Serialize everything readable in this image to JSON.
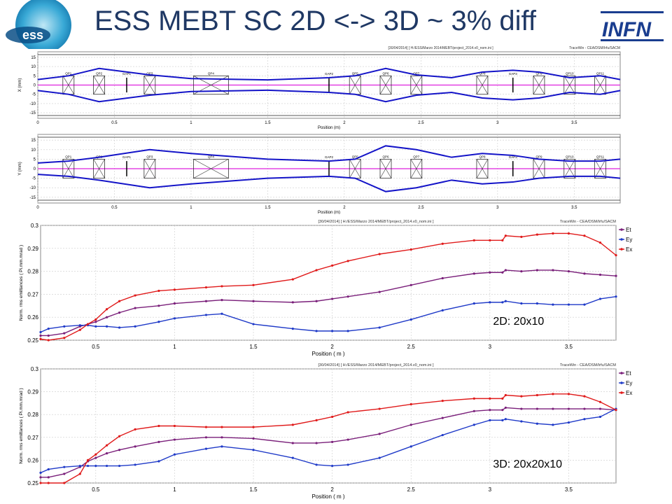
{
  "slide": {
    "title": "ESS MEBT SC 2D <-> 3D ~ 3% diff",
    "logo_right_text": "INFN"
  },
  "colors": {
    "title": "#1f3864",
    "envelope": "#1414c8",
    "axis_line": "#dd22dd",
    "Et": "#7a1f7a",
    "Ey": "#1f3ac8",
    "Ex": "#e01b1b"
  },
  "chart_data": [
    {
      "type": "line",
      "panel": "x-envelope",
      "header": "[30/04/2014] [ H:/ESS/Marzo 2014/MEBT/project_2014.v0_nom.ini ]",
      "software": "TraceWin - CEA/DSM/Irfu/SACM",
      "xlabel": "Position (m)",
      "ylabel": "X (mm)",
      "xlim": [
        0,
        3.8
      ],
      "ylim": [
        -18,
        18
      ],
      "xticks": [
        0,
        0.5,
        1,
        1.5,
        2,
        2.5,
        3,
        3.5
      ],
      "yticks": [
        15,
        10,
        5,
        0,
        -5,
        -10,
        -15
      ],
      "grid": true,
      "elements": [
        {
          "name": "QP1",
          "x": 0.2,
          "kind": "quad"
        },
        {
          "name": "QP2",
          "x": 0.4,
          "kind": "quad"
        },
        {
          "name": "GAP1",
          "x": 0.58,
          "kind": "gap"
        },
        {
          "name": "QP3",
          "x": 0.73,
          "kind": "quad"
        },
        {
          "name": "QP4",
          "x": 1.13,
          "kind": "bigquad"
        },
        {
          "name": "GAP2",
          "x": 1.9,
          "kind": "gap"
        },
        {
          "name": "QP5",
          "x": 2.07,
          "kind": "quad"
        },
        {
          "name": "QP6",
          "x": 2.27,
          "kind": "quad"
        },
        {
          "name": "QP7",
          "x": 2.47,
          "kind": "quad"
        },
        {
          "name": "QP8",
          "x": 2.9,
          "kind": "quad"
        },
        {
          "name": "GAP3",
          "x": 3.1,
          "kind": "gap"
        },
        {
          "name": "QP9",
          "x": 3.27,
          "kind": "quad"
        },
        {
          "name": "QP10",
          "x": 3.47,
          "kind": "quad"
        },
        {
          "name": "QP11",
          "x": 3.67,
          "kind": "quad"
        }
      ],
      "x": [
        0,
        0.2,
        0.4,
        0.73,
        1.0,
        1.5,
        1.9,
        2.07,
        2.27,
        2.47,
        2.7,
        2.9,
        3.1,
        3.27,
        3.47,
        3.67,
        3.8
      ],
      "upper": [
        3,
        5,
        9,
        5.5,
        3.5,
        2.8,
        4,
        5,
        9,
        5.5,
        4,
        7,
        8,
        7,
        4,
        5,
        3
      ],
      "lower": [
        -3,
        -5,
        -9,
        -5.5,
        -3.5,
        -2.8,
        -4,
        -5,
        -9,
        -5.5,
        -4,
        -7,
        -8,
        -7,
        -4,
        -5,
        -3
      ]
    },
    {
      "type": "line",
      "panel": "y-envelope",
      "xlabel": "Position (m)",
      "ylabel": "Y (mm)",
      "xlim": [
        0,
        3.8
      ],
      "ylim": [
        -18,
        18
      ],
      "xticks": [
        0,
        0.5,
        1,
        1.5,
        2,
        2.5,
        3,
        3.5
      ],
      "yticks": [
        15,
        10,
        5,
        0,
        -5,
        -10,
        -15
      ],
      "grid": true,
      "elements": [
        {
          "name": "QP1",
          "x": 0.2,
          "kind": "quad"
        },
        {
          "name": "QP2",
          "x": 0.4,
          "kind": "quad"
        },
        {
          "name": "GAP1",
          "x": 0.58,
          "kind": "gap"
        },
        {
          "name": "QP3",
          "x": 0.73,
          "kind": "quad"
        },
        {
          "name": "QP4",
          "x": 1.13,
          "kind": "bigquad"
        },
        {
          "name": "GAP2",
          "x": 1.9,
          "kind": "gap"
        },
        {
          "name": "QP5",
          "x": 2.07,
          "kind": "quad"
        },
        {
          "name": "QP6",
          "x": 2.27,
          "kind": "quad"
        },
        {
          "name": "QP7",
          "x": 2.47,
          "kind": "quad"
        },
        {
          "name": "QP8",
          "x": 2.9,
          "kind": "quad"
        },
        {
          "name": "GAP3",
          "x": 3.1,
          "kind": "gap"
        },
        {
          "name": "QP9",
          "x": 3.27,
          "kind": "quad"
        },
        {
          "name": "QP10",
          "x": 3.47,
          "kind": "quad"
        },
        {
          "name": "QP11",
          "x": 3.67,
          "kind": "quad"
        }
      ],
      "x": [
        0,
        0.2,
        0.4,
        0.73,
        1.0,
        1.5,
        1.9,
        2.07,
        2.27,
        2.47,
        2.7,
        2.9,
        3.1,
        3.27,
        3.47,
        3.67,
        3.8
      ],
      "upper": [
        3,
        4,
        6,
        10,
        8,
        5,
        4,
        5,
        12,
        10,
        6,
        8,
        7,
        5,
        4,
        4,
        5
      ],
      "lower": [
        -3,
        -4,
        -6,
        -10,
        -8,
        -5,
        -4,
        -5,
        -12,
        -10,
        -6,
        -8,
        -7,
        -5,
        -4,
        -4,
        -5
      ]
    },
    {
      "type": "line",
      "panel": "emittance-2D",
      "header": "[30/04/2014] [ H:/ESS/Marzo 2014/MEBT/project_2014.v0_nom.ini ]",
      "software": "TraceWin - CEA/DSM/Irfu/SACM",
      "xlabel": "Position ( m )",
      "ylabel": "Norm. rms emittances ( Pi.mm.mrad )",
      "annotation": "2D: 20x10",
      "xlim": [
        0.15,
        3.8
      ],
      "ylim": [
        0.25,
        0.3
      ],
      "xticks": [
        0.5,
        1,
        1.5,
        2,
        2.5,
        3,
        3.5
      ],
      "yticks": [
        0.3,
        0.29,
        0.28,
        0.27,
        0.26,
        0.25
      ],
      "grid": true,
      "legend": "top-right",
      "x": [
        0.15,
        0.2,
        0.3,
        0.4,
        0.45,
        0.5,
        0.57,
        0.65,
        0.75,
        0.9,
        1.0,
        1.2,
        1.3,
        1.5,
        1.75,
        1.9,
        2.0,
        2.1,
        2.3,
        2.5,
        2.7,
        2.9,
        3.0,
        3.08,
        3.1,
        3.2,
        3.3,
        3.4,
        3.5,
        3.6,
        3.7,
        3.8
      ],
      "series": [
        {
          "name": "Et",
          "values": [
            0.252,
            0.252,
            0.253,
            0.256,
            0.257,
            0.258,
            0.26,
            0.262,
            0.264,
            0.265,
            0.266,
            0.267,
            0.2675,
            0.267,
            0.2665,
            0.267,
            0.268,
            0.269,
            0.271,
            0.274,
            0.277,
            0.279,
            0.2795,
            0.2795,
            0.2805,
            0.28,
            0.2805,
            0.2805,
            0.28,
            0.279,
            0.2785,
            0.278
          ]
        },
        {
          "name": "Ey",
          "values": [
            0.2535,
            0.255,
            0.256,
            0.2565,
            0.2565,
            0.256,
            0.256,
            0.2555,
            0.256,
            0.258,
            0.2595,
            0.261,
            0.2615,
            0.257,
            0.255,
            0.254,
            0.254,
            0.254,
            0.2555,
            0.259,
            0.263,
            0.266,
            0.2665,
            0.2665,
            0.267,
            0.266,
            0.266,
            0.2655,
            0.2655,
            0.2655,
            0.268,
            0.269
          ]
        },
        {
          "name": "Ex",
          "values": [
            0.2505,
            0.25,
            0.251,
            0.2545,
            0.257,
            0.259,
            0.2635,
            0.267,
            0.2695,
            0.2715,
            0.272,
            0.273,
            0.2735,
            0.274,
            0.2765,
            0.2805,
            0.2825,
            0.2845,
            0.2875,
            0.2895,
            0.292,
            0.2935,
            0.2935,
            0.2935,
            0.2955,
            0.295,
            0.296,
            0.2965,
            0.2965,
            0.2955,
            0.2925,
            0.287
          ]
        }
      ]
    },
    {
      "type": "line",
      "panel": "emittance-3D",
      "header": "[30/04/2014] [ H:/ESS/Marzo 2014/MEBT/project_2014.v0_nom.ini ]",
      "software": "TraceWin - CEA/DSM/Irfu/SACM",
      "xlabel": "Position ( m )",
      "ylabel": "Norm. rms emittances ( Pi.mm.mrad )",
      "annotation": "3D: 20x20x10",
      "xlim": [
        0.15,
        3.8
      ],
      "ylim": [
        0.25,
        0.3
      ],
      "xticks": [
        0.5,
        1,
        1.5,
        2,
        2.5,
        3,
        3.5
      ],
      "yticks": [
        0.3,
        0.29,
        0.28,
        0.27,
        0.26,
        0.25
      ],
      "grid": true,
      "legend": "top-right",
      "x": [
        0.15,
        0.2,
        0.3,
        0.4,
        0.45,
        0.5,
        0.57,
        0.65,
        0.75,
        0.9,
        1.0,
        1.2,
        1.3,
        1.5,
        1.75,
        1.9,
        2.0,
        2.1,
        2.3,
        2.5,
        2.7,
        2.9,
        3.0,
        3.08,
        3.1,
        3.2,
        3.3,
        3.4,
        3.5,
        3.6,
        3.7,
        3.8
      ],
      "series": [
        {
          "name": "Et",
          "values": [
            0.2525,
            0.2525,
            0.254,
            0.257,
            0.2595,
            0.261,
            0.263,
            0.2645,
            0.266,
            0.268,
            0.269,
            0.27,
            0.27,
            0.2695,
            0.2675,
            0.2675,
            0.268,
            0.269,
            0.2715,
            0.2755,
            0.2785,
            0.2815,
            0.282,
            0.282,
            0.283,
            0.2825,
            0.2825,
            0.2825,
            0.2825,
            0.2825,
            0.2825,
            0.282
          ]
        },
        {
          "name": "Ey",
          "values": [
            0.2545,
            0.256,
            0.257,
            0.2575,
            0.2575,
            0.2575,
            0.2575,
            0.2575,
            0.258,
            0.2595,
            0.2625,
            0.265,
            0.266,
            0.2645,
            0.261,
            0.258,
            0.2575,
            0.258,
            0.261,
            0.266,
            0.271,
            0.2755,
            0.2775,
            0.2775,
            0.278,
            0.277,
            0.276,
            0.2755,
            0.2765,
            0.278,
            0.279,
            0.2825
          ]
        },
        {
          "name": "Ex",
          "values": [
            0.25,
            0.25,
            0.25,
            0.254,
            0.26,
            0.2625,
            0.2665,
            0.2705,
            0.2735,
            0.275,
            0.275,
            0.2745,
            0.2745,
            0.2745,
            0.2755,
            0.2775,
            0.279,
            0.281,
            0.2825,
            0.2845,
            0.286,
            0.287,
            0.287,
            0.287,
            0.2885,
            0.288,
            0.2885,
            0.289,
            0.289,
            0.288,
            0.2855,
            0.282
          ]
        }
      ]
    }
  ]
}
